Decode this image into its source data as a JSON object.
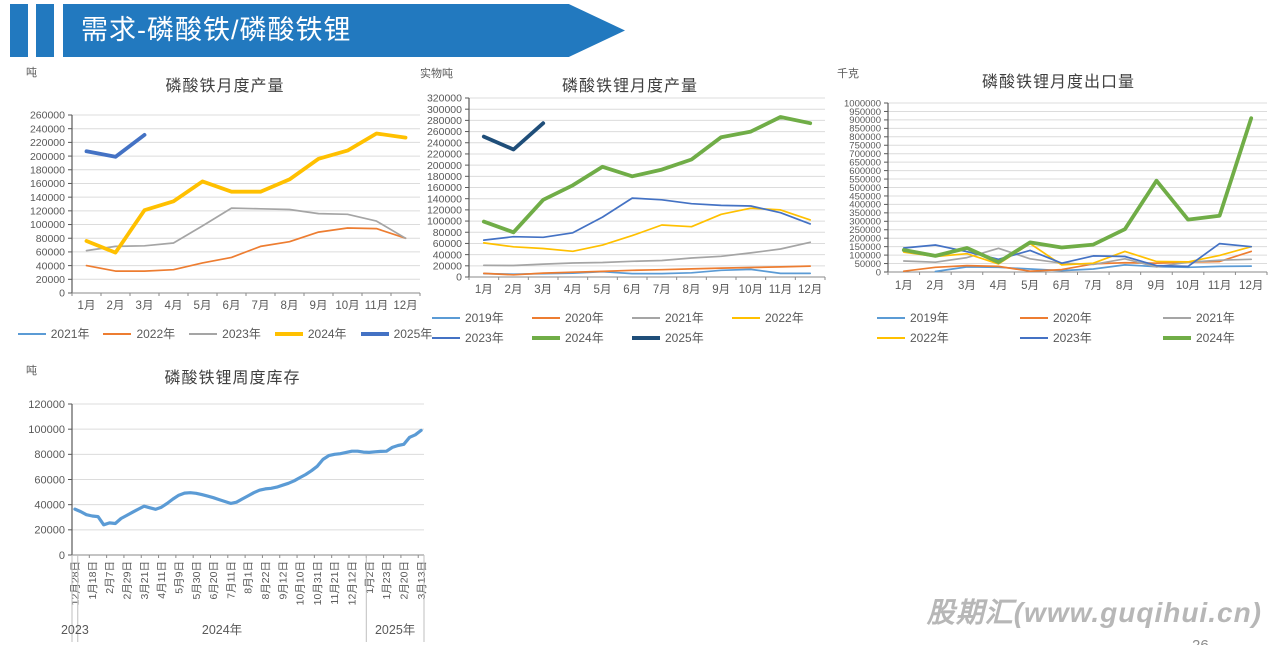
{
  "header": {
    "title": "需求-磷酸铁/磷酸铁锂",
    "banner_color": "#2279BF"
  },
  "watermark": {
    "text": "股期汇(www.guqihui.cn)"
  },
  "page_number": "26",
  "chart_data": [
    {
      "type": "line",
      "title": "磷酸铁月度产量",
      "unit": "吨",
      "x_labels": [
        "1月",
        "2月",
        "3月",
        "4月",
        "5月",
        "6月",
        "7月",
        "8月",
        "9月",
        "10月",
        "11月",
        "12月"
      ],
      "ylim": [
        0,
        260000
      ],
      "ystep": 20000,
      "grid": true,
      "legend": {
        "position": "bottom",
        "rows": [
          [
            "2021年",
            "2022年",
            "2023年",
            "2024年",
            "2025年"
          ]
        ]
      },
      "series": [
        {
          "name": "2021年",
          "color": "#5B9BD5",
          "thick": false,
          "values": []
        },
        {
          "name": "2022年",
          "color": "#ED7D31",
          "thick": false,
          "values": [
            40000,
            32000,
            32000,
            34000,
            44000,
            52000,
            68000,
            75000,
            89000,
            95000,
            94000,
            80000
          ]
        },
        {
          "name": "2023年",
          "color": "#A5A5A5",
          "thick": false,
          "values": [
            62000,
            68000,
            69000,
            73000,
            98000,
            124000,
            123000,
            122000,
            116000,
            115000,
            105000,
            80000
          ]
        },
        {
          "name": "2024年",
          "color": "#FFC000",
          "thick": true,
          "values": [
            76000,
            59000,
            121000,
            134000,
            163000,
            148000,
            148000,
            166000,
            196000,
            208000,
            233000,
            227000
          ]
        },
        {
          "name": "2025年",
          "color": "#4472C4",
          "thick": true,
          "values": [
            207000,
            199000,
            231000
          ]
        }
      ]
    },
    {
      "type": "line",
      "title": "磷酸铁锂月度产量",
      "unit": "实物吨",
      "x_labels": [
        "1月",
        "2月",
        "3月",
        "4月",
        "5月",
        "6月",
        "7月",
        "8月",
        "9月",
        "10月",
        "11月",
        "12月"
      ],
      "ylim": [
        0,
        320000
      ],
      "ystep": 20000,
      "grid": true,
      "legend": {
        "position": "bottom",
        "rows": [
          [
            "2019年",
            "2020年",
            "2021年",
            "2022年"
          ],
          [
            "2023年",
            "2024年",
            "2025年"
          ]
        ]
      },
      "series": [
        {
          "name": "2019年",
          "color": "#5B9BD5",
          "thick": false,
          "values": [
            6000,
            5000,
            6000,
            7000,
            9500,
            6000,
            6000,
            7500,
            12000,
            13500,
            6500,
            6500
          ]
        },
        {
          "name": "2020年",
          "color": "#ED7D31",
          "thick": false,
          "values": [
            6500,
            4000,
            7000,
            8500,
            10000,
            12000,
            13000,
            14500,
            16000,
            17000,
            18000,
            19500
          ]
        },
        {
          "name": "2021年",
          "color": "#A5A5A5",
          "thick": false,
          "values": [
            21000,
            20500,
            23000,
            25000,
            26000,
            28000,
            29500,
            34000,
            37000,
            43000,
            50000,
            62000
          ]
        },
        {
          "name": "2022年",
          "color": "#FFC000",
          "thick": false,
          "values": [
            61000,
            54000,
            51000,
            46000,
            57000,
            74000,
            93000,
            90000,
            112000,
            123000,
            120000,
            102000
          ]
        },
        {
          "name": "2023年",
          "color": "#4472C4",
          "thick": false,
          "values": [
            66000,
            72000,
            71000,
            79000,
            107000,
            141000,
            138000,
            131000,
            128000,
            127000,
            115000,
            95000
          ]
        },
        {
          "name": "2024年",
          "color": "#70AD47",
          "thick": true,
          "values": [
            99000,
            80000,
            138000,
            164000,
            197000,
            180000,
            192000,
            210000,
            250000,
            260000,
            286000,
            275000
          ]
        },
        {
          "name": "2025年",
          "color": "#1F4E79",
          "thick": true,
          "values": [
            251000,
            228000,
            275000
          ]
        }
      ]
    },
    {
      "type": "line",
      "title": "磷酸铁锂月度出口量",
      "unit": "千克",
      "x_labels": [
        "1月",
        "2月",
        "3月",
        "4月",
        "5月",
        "6月",
        "7月",
        "8月",
        "9月",
        "10月",
        "11月",
        "12月"
      ],
      "ylim": [
        0,
        1000000
      ],
      "ystep": 50000,
      "grid": true,
      "legend": {
        "position": "bottom",
        "rows": [
          [
            "2019年",
            "2020年",
            "2021年"
          ],
          [
            "2022年",
            "2023年",
            "2024年"
          ]
        ]
      },
      "series": [
        {
          "name": "2019年",
          "color": "#5B9BD5",
          "thick": false,
          "values": [
            null,
            3000,
            30000,
            28000,
            18000,
            8000,
            18000,
            42000,
            32000,
            28000,
            33000,
            35000
          ]
        },
        {
          "name": "2020年",
          "color": "#ED7D31",
          "thick": false,
          "values": [
            5000,
            28000,
            38000,
            33000,
            5000,
            14000,
            48000,
            55000,
            52000,
            58000,
            62000,
            122000
          ]
        },
        {
          "name": "2021年",
          "color": "#A5A5A5",
          "thick": false,
          "values": [
            65000,
            58000,
            85000,
            140000,
            78000,
            52000,
            45000,
            78000,
            30000,
            58000,
            70000,
            75000
          ]
        },
        {
          "name": "2022年",
          "color": "#FFC000",
          "thick": false,
          "values": [
            118000,
            92000,
            108000,
            48000,
            168000,
            42000,
            52000,
            122000,
            62000,
            60000,
            98000,
            150000
          ]
        },
        {
          "name": "2023年",
          "color": "#4472C4",
          "thick": false,
          "values": [
            142000,
            160000,
            120000,
            75000,
            128000,
            52000,
            95000,
            92000,
            38000,
            33000,
            168000,
            150000
          ]
        },
        {
          "name": "2024年",
          "color": "#70AD47",
          "thick": true,
          "values": [
            130000,
            95000,
            142000,
            58000,
            175000,
            145000,
            162000,
            253000,
            540000,
            310000,
            333000,
            910000
          ]
        }
      ]
    },
    {
      "type": "line",
      "title": "磷酸铁锂周度库存",
      "unit": "吨",
      "x_labels": [
        "12月28日",
        "1月18日",
        "2月7日",
        "2月29日",
        "3月21日",
        "4月11日",
        "5月9日",
        "5月30日",
        "6月20日",
        "7月11日",
        "8月1日",
        "8月22日",
        "9月12日",
        "10月10日",
        "10月31日",
        "11月21日",
        "12月12日",
        "1月2日",
        "1月23日",
        "2月20日",
        "3月13日"
      ],
      "label_every": 3,
      "n_points": 61,
      "ylim": [
        0,
        120000
      ],
      "ystep": 20000,
      "grid": true,
      "year_groups": [
        {
          "label": "2023",
          "separator_after": 0
        },
        {
          "label": "2024年",
          "separator_after": 50
        },
        {
          "label": "2025年",
          "separator_after": null
        }
      ],
      "legend": null,
      "series": [
        {
          "name": "库存",
          "color": "#5B9BD5",
          "thick": true,
          "width": 3.2,
          "values": [
            36500,
            34500,
            32000,
            31000,
            30500,
            24000,
            25500,
            25000,
            29000,
            31500,
            34000,
            36500,
            38800,
            37500,
            36300,
            38000,
            41000,
            44500,
            47500,
            49200,
            49500,
            49000,
            48000,
            46800,
            45500,
            44000,
            42500,
            41000,
            42000,
            44500,
            47000,
            49500,
            51500,
            52500,
            53000,
            54000,
            55500,
            57000,
            59000,
            61500,
            64000,
            67000,
            70500,
            76000,
            79000,
            80000,
            80500,
            81500,
            82500,
            82500,
            81800,
            81500,
            82000,
            82300,
            82500,
            85500,
            87000,
            88000,
            93500,
            95500,
            99000
          ]
        }
      ]
    }
  ]
}
